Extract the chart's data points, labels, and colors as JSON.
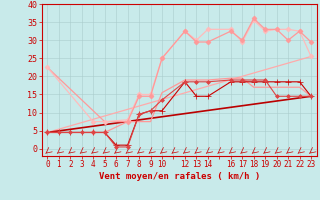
{
  "bg_color": "#c8eaea",
  "grid_color": "#aacccc",
  "xlabel": "Vent moyen/en rafales ( km/h )",
  "xlabel_color": "#cc0000",
  "xlabel_fontsize": 6.5,
  "tick_color": "#cc0000",
  "tick_fontsize": 5.5,
  "ytick_fontsize": 6,
  "xlim": [
    -0.5,
    23.5
  ],
  "ylim": [
    -2,
    40
  ],
  "yticks": [
    0,
    5,
    10,
    15,
    20,
    25,
    30,
    35,
    40
  ],
  "xtick_positions": [
    0,
    1,
    2,
    3,
    4,
    5,
    6,
    7,
    8,
    9,
    10,
    11,
    12,
    13,
    14,
    15,
    16,
    17,
    18,
    19,
    20,
    21,
    22,
    23
  ],
  "xtick_labels": [
    "0",
    "1",
    "2",
    "3",
    "4",
    "5",
    "6",
    "7",
    "8",
    "9",
    "10",
    "",
    "12",
    "13",
    "14",
    "",
    "16",
    "17",
    "18",
    "19",
    "20",
    "21",
    "22",
    "23"
  ],
  "lines": [
    {
      "x": [
        0,
        1,
        2,
        3,
        4,
        5,
        6,
        7,
        8,
        9,
        10,
        12,
        13,
        14,
        16,
        17,
        18,
        19,
        20,
        21,
        22,
        23
      ],
      "y": [
        4.5,
        4.5,
        4.5,
        4.5,
        4.5,
        4.5,
        1.0,
        1.0,
        9.5,
        10.5,
        10.5,
        18.5,
        14.5,
        14.5,
        18.5,
        18.5,
        18.5,
        18.5,
        18.5,
        18.5,
        18.5,
        14.5
      ],
      "color": "#cc0000",
      "lw": 0.8,
      "marker": "+",
      "ms": 4,
      "zorder": 4
    },
    {
      "x": [
        0,
        23
      ],
      "y": [
        4.5,
        14.5
      ],
      "color": "#bb0000",
      "lw": 1.2,
      "marker": null,
      "ms": 0,
      "zorder": 3
    },
    {
      "x": [
        0,
        1,
        2,
        3,
        4,
        5,
        6,
        7,
        8,
        9,
        10,
        12,
        13,
        14,
        16,
        17,
        18,
        19,
        20,
        21,
        22,
        23
      ],
      "y": [
        4.5,
        4.5,
        4.5,
        4.5,
        4.5,
        4.5,
        0.5,
        0.5,
        9.5,
        10.5,
        13.5,
        18.5,
        18.5,
        18.5,
        19.0,
        19.0,
        19.0,
        19.0,
        14.5,
        14.5,
        14.5,
        14.5
      ],
      "color": "#dd4444",
      "lw": 0.8,
      "marker": "D",
      "ms": 2,
      "zorder": 4
    },
    {
      "x": [
        0,
        23
      ],
      "y": [
        4.5,
        25.5
      ],
      "color": "#ffaaaa",
      "lw": 0.9,
      "marker": null,
      "ms": 0,
      "zorder": 2
    },
    {
      "x": [
        0,
        5,
        7,
        8,
        9,
        10,
        12,
        13,
        14,
        16,
        17,
        18,
        19,
        20,
        21,
        22,
        23
      ],
      "y": [
        22.5,
        7.5,
        7.5,
        7.5,
        7.5,
        15.5,
        19.0,
        19.0,
        19.0,
        19.5,
        19.5,
        17.0,
        17.0,
        17.0,
        17.0,
        17.0,
        14.5
      ],
      "color": "#ff9999",
      "lw": 0.9,
      "marker": null,
      "ms": 0,
      "zorder": 3
    },
    {
      "x": [
        0,
        4,
        5,
        7,
        8,
        9,
        10,
        12,
        13,
        14,
        16,
        17,
        18,
        19,
        20,
        21,
        22,
        23
      ],
      "y": [
        22.5,
        7.5,
        7.5,
        8.0,
        15.0,
        15.0,
        25.0,
        32.5,
        30.0,
        33.0,
        33.0,
        29.5,
        35.5,
        32.5,
        33.0,
        33.0,
        32.5,
        25.5
      ],
      "color": "#ffbbbb",
      "lw": 0.9,
      "marker": "D",
      "ms": 2.5,
      "zorder": 3
    },
    {
      "x": [
        0,
        4,
        5,
        7,
        8,
        9,
        10,
        12,
        13,
        14,
        16,
        17,
        18,
        19,
        20,
        21,
        22,
        23
      ],
      "y": [
        4.5,
        4.5,
        4.5,
        7.5,
        14.5,
        14.5,
        25.0,
        32.5,
        29.5,
        29.5,
        32.5,
        30.0,
        36.0,
        33.0,
        33.0,
        30.0,
        32.5,
        29.5
      ],
      "color": "#ff9999",
      "lw": 0.9,
      "marker": "D",
      "ms": 2.5,
      "zorder": 3
    }
  ]
}
